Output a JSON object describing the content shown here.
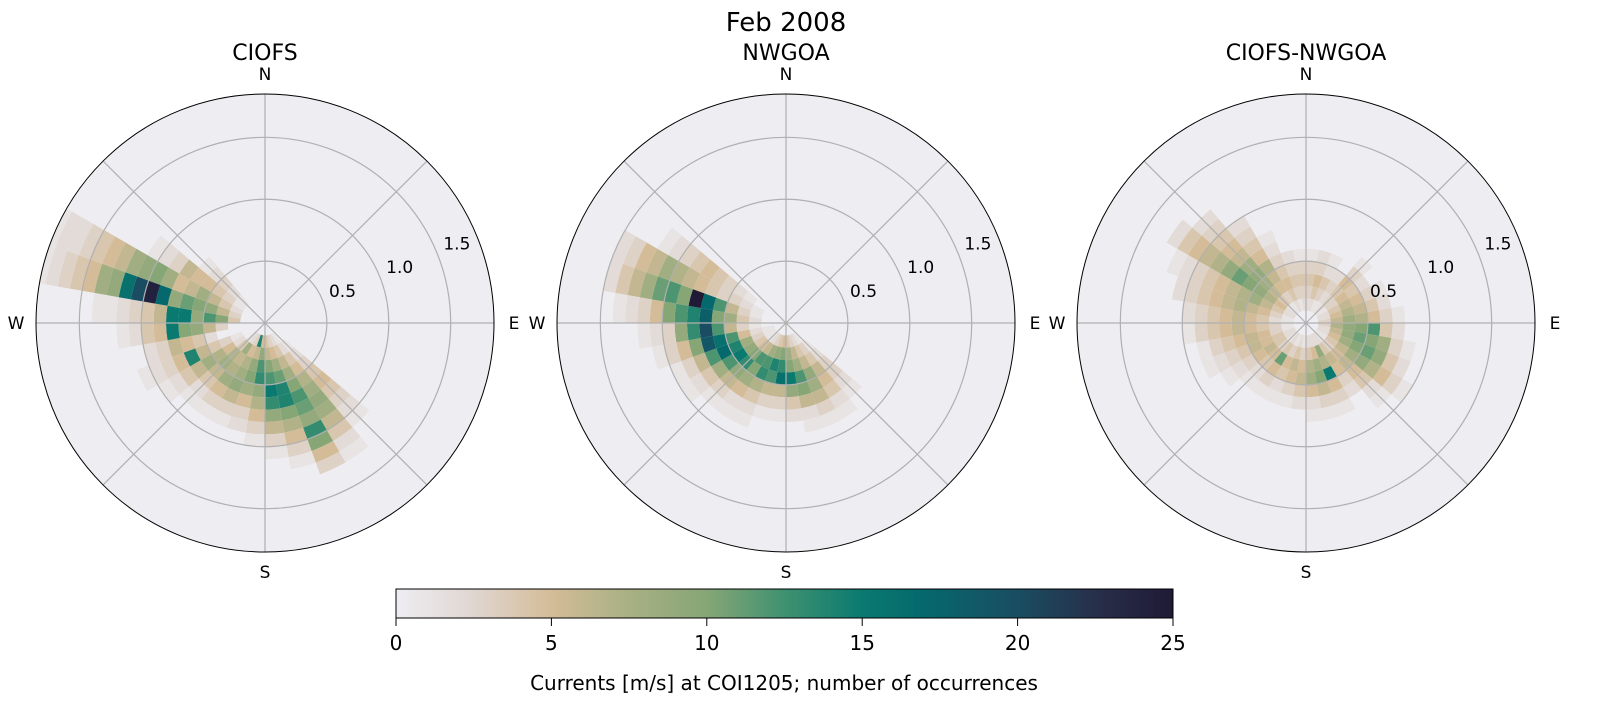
{
  "chart_data": {
    "type": "heatmap",
    "subtype": "polar-windrose-histogram",
    "title": "Feb 2008",
    "direction_bin_deg": 10,
    "speed_bin": 0.1,
    "rlim": [
      0,
      1.85
    ],
    "r_ticks": [
      0.5,
      1.0,
      1.5
    ],
    "r_tick_labels": [
      "0.5",
      "1.0",
      "1.5"
    ],
    "compass_labels": {
      "N": "N",
      "E": "E",
      "S": "S",
      "W": "W"
    },
    "grid": true,
    "background_color": "#eeedf2",
    "grid_color": "#b0b0b0",
    "colorbar": {
      "label": "Currents [m/s] at COI1205; number of occurrences",
      "range": [
        0,
        25
      ],
      "ticks": [
        0,
        5,
        10,
        15,
        20,
        25
      ],
      "tick_labels": [
        "0",
        "5",
        "10",
        "15",
        "20",
        "25"
      ],
      "placement": "bottom",
      "colormap_stops": [
        [
          0,
          "#eeedf2"
        ],
        [
          2.5,
          "#e0d6d0"
        ],
        [
          5,
          "#d4bc98"
        ],
        [
          7.5,
          "#a8b084"
        ],
        [
          10,
          "#86a676"
        ],
        [
          12.5,
          "#3f9170"
        ],
        [
          15,
          "#0a7a70"
        ],
        [
          17,
          "#05686c"
        ],
        [
          20,
          "#1a4d62"
        ],
        [
          22.5,
          "#272f4a"
        ],
        [
          25,
          "#201a36"
        ]
      ]
    },
    "panels": [
      {
        "title": "CIOFS",
        "rows": [
          {
            "dir": 130,
            "counts": [
              0,
              0,
              1,
              2,
              3,
              4,
              5,
              4,
              3,
              2,
              1
            ]
          },
          {
            "dir": 140,
            "counts": [
              0,
              1,
              2,
              4,
              5,
              7,
              8,
              9,
              8,
              6,
              4,
              2,
              1
            ]
          },
          {
            "dir": 150,
            "counts": [
              0,
              2,
              4,
              6,
              8,
              10,
              12,
              11,
              9,
              13,
              10,
              5,
              3
            ]
          },
          {
            "dir": 160,
            "counts": [
              0,
              3,
              5,
              8,
              11,
              14,
              14,
              10,
              7,
              5,
              3,
              1
            ]
          },
          {
            "dir": 170,
            "counts": [
              0,
              4,
              6,
              10,
              12,
              15,
              13,
              9,
              6,
              3,
              1
            ]
          },
          {
            "dir": 180,
            "counts": [
              0,
              5,
              9,
              12,
              13,
              9,
              7,
              5,
              3,
              1
            ]
          },
          {
            "dir": 190,
            "counts": [
              0,
              14,
              6,
              9,
              10,
              8,
              5,
              3,
              2
            ]
          },
          {
            "dir": 200,
            "counts": [
              0,
              3,
              5,
              7,
              8,
              9,
              6,
              3,
              1
            ]
          },
          {
            "dir": 210,
            "counts": [
              0,
              2,
              8,
              6,
              7,
              8,
              5,
              3,
              1
            ]
          },
          {
            "dir": 220,
            "counts": [
              0,
              1,
              4,
              7,
              8,
              6,
              4,
              2,
              1
            ]
          },
          {
            "dir": 230,
            "counts": [
              0,
              0,
              2,
              5,
              7,
              8,
              6,
              4,
              2,
              1
            ]
          },
          {
            "dir": 240,
            "counts": [
              0,
              0,
              1,
              3,
              4,
              6,
              14,
              5,
              3,
              2,
              1
            ]
          },
          {
            "dir": 250,
            "counts": [
              0,
              0,
              0,
              0,
              2,
              4,
              5,
              6,
              3,
              2
            ]
          },
          {
            "dir": 260,
            "counts": [
              0,
              0,
              0,
              3,
              6,
              9,
              10,
              15,
              5,
              4,
              2,
              1
            ]
          },
          {
            "dir": 270,
            "counts": [
              0,
              0,
              4,
              10,
              12,
              9,
              15,
              15,
              6,
              4,
              3,
              2,
              1,
              1
            ]
          },
          {
            "dir": 280,
            "counts": [
              0,
              0,
              3,
              6,
              9,
              10,
              11,
              9,
              17,
              24,
              20,
              16,
              9,
              8,
              5,
              4,
              3,
              2,
              1
            ]
          },
          {
            "dir": 290,
            "counts": [
              0,
              0,
              2,
              4,
              6,
              8,
              6,
              5,
              8,
              10,
              9,
              8,
              6,
              5,
              4,
              3,
              2,
              2,
              1
            ]
          },
          {
            "dir": 300,
            "counts": [
              0,
              0,
              1,
              3,
              4,
              5,
              5,
              6,
              3,
              2,
              1
            ]
          },
          {
            "dir": 310,
            "counts": [
              0,
              0,
              1,
              2,
              3,
              2,
              1
            ]
          }
        ]
      },
      {
        "title": "NWGOA",
        "rows": [
          {
            "dir": 130,
            "counts": [
              0,
              0,
              1,
              2,
              3,
              3,
              2,
              1
            ]
          },
          {
            "dir": 140,
            "counts": [
              0,
              1,
              3,
              4,
              6,
              5,
              4,
              2,
              1
            ]
          },
          {
            "dir": 150,
            "counts": [
              0,
              2,
              4,
              6,
              9,
              8,
              6,
              3,
              1
            ]
          },
          {
            "dir": 160,
            "counts": [
              0,
              3,
              6,
              8,
              12,
              10,
              6,
              2,
              1
            ]
          },
          {
            "dir": 170,
            "counts": [
              0,
              4,
              8,
              10,
              15,
              9,
              4,
              2
            ]
          },
          {
            "dir": 180,
            "counts": [
              0,
              5,
              10,
              13,
              16,
              6,
              3,
              1
            ]
          },
          {
            "dir": 190,
            "counts": [
              0,
              4,
              9,
              14,
              12,
              6,
              3,
              1
            ]
          },
          {
            "dir": 200,
            "counts": [
              0,
              3,
              8,
              12,
              13,
              7,
              4,
              2,
              1
            ]
          },
          {
            "dir": 210,
            "counts": [
              0,
              2,
              6,
              12,
              10,
              8,
              5,
              2,
              1
            ]
          },
          {
            "dir": 220,
            "counts": [
              0,
              1,
              5,
              10,
              13,
              9,
              6,
              3,
              1
            ]
          },
          {
            "dir": 230,
            "counts": [
              0,
              1,
              4,
              9,
              15,
              12,
              8,
              4,
              2,
              1
            ]
          },
          {
            "dir": 240,
            "counts": [
              0,
              1,
              3,
              8,
              14,
              17,
              12,
              6,
              3,
              1
            ]
          },
          {
            "dir": 250,
            "counts": [
              0,
              1,
              2,
              5,
              12,
              16,
              19,
              10,
              5,
              3,
              1
            ]
          },
          {
            "dir": 260,
            "counts": [
              0,
              0,
              1,
              3,
              6,
              12,
              20,
              13,
              9,
              3,
              2,
              1
            ]
          },
          {
            "dir": 270,
            "counts": [
              0,
              0,
              2,
              4,
              8,
              10,
              18,
              14,
              12,
              10,
              5,
              3,
              2,
              1
            ]
          },
          {
            "dir": 280,
            "counts": [
              0,
              0,
              1,
              3,
              6,
              12,
              17,
              25,
              10,
              12,
              11,
              8,
              6,
              4,
              2
            ]
          },
          {
            "dir": 290,
            "counts": [
              0,
              0,
              1,
              2,
              3,
              3,
              4,
              5,
              6,
              7,
              8,
              6,
              5,
              3,
              2
            ]
          },
          {
            "dir": 300,
            "counts": [
              0,
              0,
              0,
              1,
              2,
              3,
              4,
              5,
              4,
              3,
              2,
              1
            ]
          }
        ]
      },
      {
        "title": "CIOFS-NWGOA",
        "rows": [
          {
            "dir": 0,
            "counts": [
              0,
              2,
              3,
              4,
              3,
              1
            ]
          },
          {
            "dir": 10,
            "counts": [
              0,
              2,
              4,
              5,
              3,
              2
            ]
          },
          {
            "dir": 20,
            "counts": [
              0,
              1,
              3,
              4,
              2,
              1
            ]
          },
          {
            "dir": 30,
            "counts": [
              0,
              1,
              2,
              3,
              2
            ]
          },
          {
            "dir": 40,
            "counts": [
              0,
              2,
              3,
              4,
              5,
              3,
              1
            ]
          },
          {
            "dir": 50,
            "counts": [
              0,
              1,
              3,
              5,
              4,
              2
            ]
          },
          {
            "dir": 60,
            "counts": [
              0,
              2,
              4,
              6,
              5,
              3,
              1
            ]
          },
          {
            "dir": 70,
            "counts": [
              0,
              2,
              5,
              7,
              6,
              4,
              2
            ]
          },
          {
            "dir": 80,
            "counts": [
              0,
              3,
              6,
              8,
              7,
              5,
              3,
              1
            ]
          },
          {
            "dir": 90,
            "counts": [
              0,
              3,
              7,
              9,
              10,
              12,
              4,
              2
            ]
          },
          {
            "dir": 100,
            "counts": [
              0,
              2,
              6,
              9,
              11,
              10,
              8,
              3,
              1
            ]
          },
          {
            "dir": 110,
            "counts": [
              0,
              2,
              5,
              8,
              10,
              11,
              9,
              4,
              2
            ]
          },
          {
            "dir": 120,
            "counts": [
              0,
              1,
              4,
              6,
              8,
              9,
              7,
              5,
              3,
              1
            ]
          },
          {
            "dir": 130,
            "counts": [
              0,
              1,
              3,
              5,
              6,
              5,
              4,
              2,
              1
            ]
          },
          {
            "dir": 140,
            "counts": [
              0,
              2,
              4,
              6,
              5,
              3,
              2
            ]
          },
          {
            "dir": 150,
            "counts": [
              0,
              2,
              9,
              7,
              15,
              5,
              3,
              1
            ]
          },
          {
            "dir": 160,
            "counts": [
              0,
              2,
              5,
              8,
              10,
              6,
              3,
              1
            ]
          },
          {
            "dir": 170,
            "counts": [
              0,
              2,
              4,
              7,
              8,
              5,
              2,
              1
            ]
          },
          {
            "dir": 180,
            "counts": [
              0,
              1,
              3,
              5,
              6,
              4,
              2
            ]
          },
          {
            "dir": 190,
            "counts": [
              0,
              2,
              4,
              6,
              5,
              3,
              1
            ]
          },
          {
            "dir": 200,
            "counts": [
              0,
              1,
              3,
              5,
              4,
              2,
              1
            ]
          },
          {
            "dir": 210,
            "counts": [
              0,
              2,
              4,
              11,
              5,
              3,
              1
            ]
          },
          {
            "dir": 220,
            "counts": [
              0,
              1,
              3,
              5,
              4,
              2,
              1
            ]
          },
          {
            "dir": 230,
            "counts": [
              0,
              2,
              4,
              6,
              5,
              3,
              2,
              1
            ]
          },
          {
            "dir": 240,
            "counts": [
              0,
              2,
              4,
              5,
              6,
              4,
              3,
              2,
              1
            ]
          },
          {
            "dir": 250,
            "counts": [
              0,
              1,
              3,
              5,
              6,
              5,
              4,
              3,
              1
            ]
          },
          {
            "dir": 260,
            "counts": [
              0,
              1,
              3,
              4,
              5,
              6,
              5,
              4,
              3,
              1
            ]
          },
          {
            "dir": 270,
            "counts": [
              0,
              1,
              2,
              4,
              5,
              6,
              5,
              4,
              3,
              2
            ]
          },
          {
            "dir": 280,
            "counts": [
              0,
              1,
              3,
              5,
              6,
              7,
              6,
              5,
              4,
              3,
              2
            ]
          },
          {
            "dir": 290,
            "counts": [
              0,
              2,
              4,
              6,
              8,
              7,
              6,
              5,
              4,
              3,
              2,
              1
            ]
          },
          {
            "dir": 300,
            "counts": [
              0,
              2,
              5,
              7,
              9,
              10,
              11,
              9,
              7,
              6,
              5,
              4,
              2
            ]
          },
          {
            "dir": 310,
            "counts": [
              0,
              1,
              4,
              6,
              8,
              9,
              8,
              6,
              5,
              4,
              3,
              2
            ]
          },
          {
            "dir": 320,
            "counts": [
              0,
              1,
              3,
              5,
              6,
              7,
              5,
              4,
              3,
              2
            ]
          },
          {
            "dir": 330,
            "counts": [
              0,
              2,
              4,
              5,
              4,
              3,
              2,
              1
            ]
          },
          {
            "dir": 340,
            "counts": [
              0,
              1,
              3,
              4,
              3,
              2
            ]
          },
          {
            "dir": 350,
            "counts": [
              0,
              2,
              3,
              4,
              3,
              1
            ]
          }
        ]
      }
    ]
  }
}
